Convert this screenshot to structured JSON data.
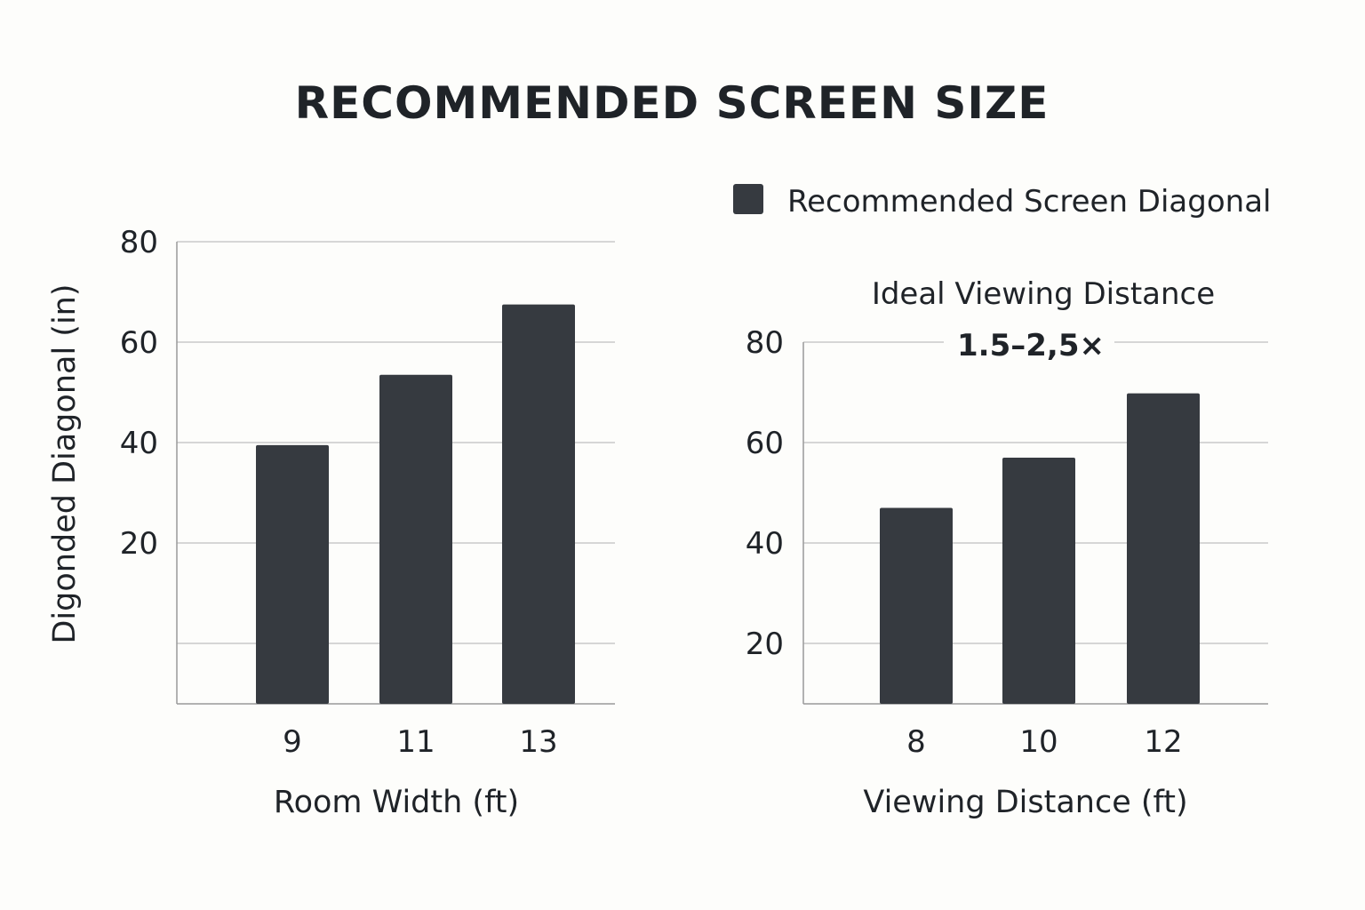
{
  "title": "RECOMMENDED SCREEN SIZE",
  "legend": {
    "label": "Recommended Screen Diagonal",
    "color": "#363a40"
  },
  "chart_data": [
    {
      "type": "bar",
      "categories": [
        "9",
        "11",
        "13"
      ],
      "series": [
        {
          "name": "Recommended Screen Diagonal",
          "values": [
            39.5,
            53.5,
            67.5
          ]
        }
      ],
      "xlabel": "Room Width (ft)",
      "ylabel": "Digonded Diagonal (in)",
      "yticks": [
        "80",
        "60",
        "40",
        "20"
      ],
      "grid": true,
      "color": "#363a40"
    },
    {
      "type": "bar",
      "categories": [
        "8",
        "10",
        "12"
      ],
      "series": [
        {
          "name": "Recommended Screen Diagonal",
          "values": [
            47,
            57,
            69.8
          ]
        }
      ],
      "xlabel": "Viewing Distance (ft)",
      "ylabel": "",
      "yticks": [
        "80",
        "60",
        "40",
        "20"
      ],
      "annotation": {
        "line1": "Ideal Viewing Distance",
        "line2": "1.5–2,5×"
      },
      "grid": true,
      "color": "#363a40"
    }
  ]
}
